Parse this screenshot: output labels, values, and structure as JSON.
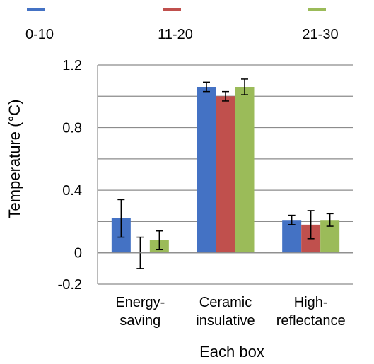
{
  "chart_data": {
    "type": "bar",
    "categories": [
      [
        "Energy-",
        "saving"
      ],
      [
        "Ceramic",
        "insulative"
      ],
      [
        "High-",
        "reflectance"
      ]
    ],
    "series": [
      {
        "name": "0-10",
        "color": "#4472C4",
        "values": [
          0.22,
          1.06,
          0.21
        ],
        "errors": [
          0.12,
          0.03,
          0.03
        ]
      },
      {
        "name": "11-20",
        "color": "#C0504D",
        "values": [
          0.0,
          1.0,
          0.18
        ],
        "errors": [
          0.1,
          0.03,
          0.09
        ]
      },
      {
        "name": "21-30",
        "color": "#9BBB59",
        "values": [
          0.08,
          1.06,
          0.21
        ],
        "errors": [
          0.06,
          0.05,
          0.04
        ]
      }
    ],
    "xlabel": "Each box",
    "ylabel": "Temperature (°C)",
    "ylim": [
      -0.2,
      1.2
    ],
    "yticks": [
      -0.2,
      0,
      0.4,
      0.8,
      1.2
    ],
    "ytick_labels": [
      "-0.2",
      "0",
      "0.4",
      "0.8",
      "1.2"
    ],
    "grid": true,
    "legend_position": "top"
  }
}
